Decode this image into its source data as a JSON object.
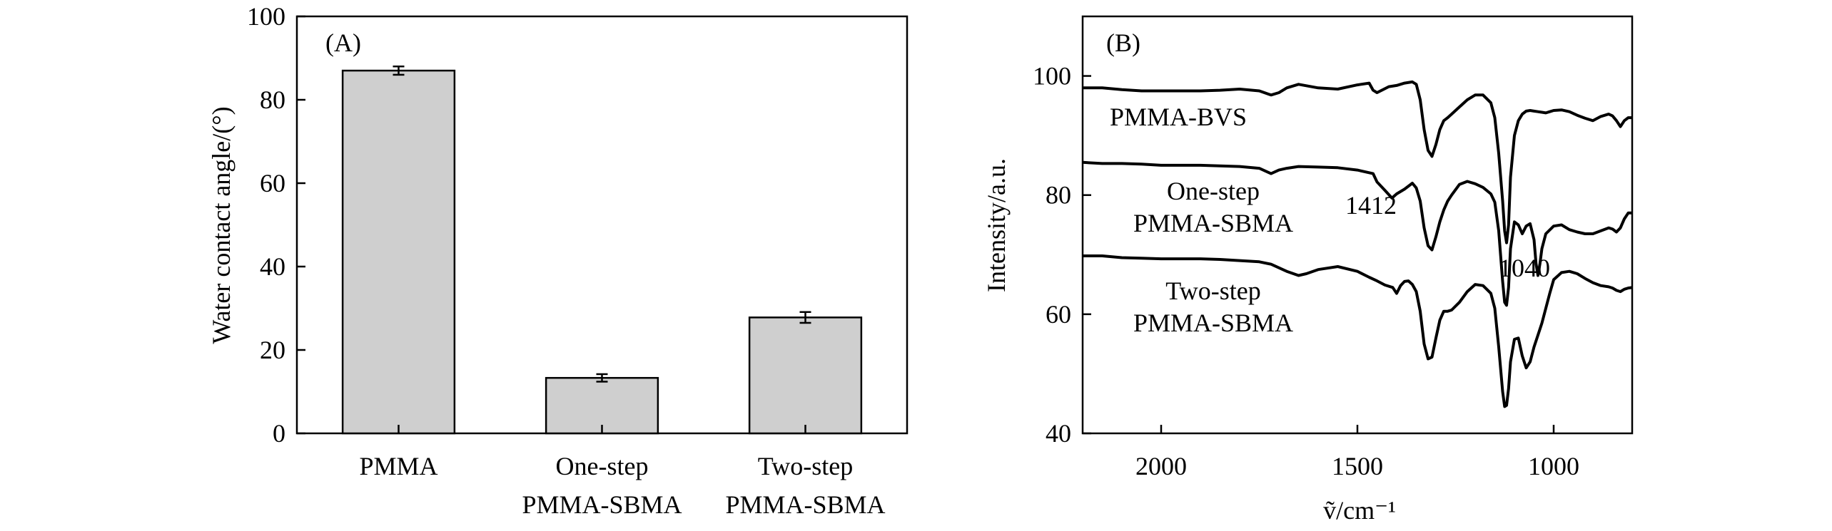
{
  "chart_data": [
    {
      "type": "bar",
      "panel_label": "(A)",
      "ylabel": "Water contact angle/(°)",
      "ylim": [
        0,
        100
      ],
      "yticks": [
        0,
        20,
        40,
        60,
        80,
        100
      ],
      "categories": [
        [
          "PMMA"
        ],
        [
          "One-step",
          "PMMA-SBMA"
        ],
        [
          "Two-step",
          "PMMA-SBMA"
        ]
      ],
      "values": [
        87,
        13.3,
        27.8
      ],
      "errors": [
        1.0,
        0.9,
        1.3
      ],
      "bar_color": "#cfcfcf"
    },
    {
      "type": "line",
      "panel_label": "(B)",
      "ylabel": "Intensity/a.u.",
      "xlabel": "ṽ/cm⁻¹",
      "xlim": [
        2200,
        800
      ],
      "xticks": [
        2000,
        1500,
        1000
      ],
      "ylim": [
        40,
        110
      ],
      "yticks": [
        40,
        60,
        80,
        100
      ],
      "series": [
        {
          "name": "PMMA-BVS",
          "label_lines": [
            "PMMA-BVS"
          ],
          "x": [
            2200,
            2150,
            2100,
            2050,
            2000,
            1950,
            1900,
            1850,
            1800,
            1750,
            1720,
            1700,
            1680,
            1650,
            1600,
            1550,
            1500,
            1470,
            1460,
            1450,
            1420,
            1400,
            1380,
            1360,
            1350,
            1340,
            1330,
            1320,
            1310,
            1300,
            1290,
            1280,
            1270,
            1260,
            1240,
            1220,
            1200,
            1180,
            1160,
            1150,
            1140,
            1130,
            1125,
            1120,
            1115,
            1110,
            1100,
            1090,
            1080,
            1070,
            1060,
            1050,
            1040,
            1030,
            1020,
            1010,
            1000,
            980,
            960,
            940,
            920,
            900,
            880,
            860,
            850,
            840,
            830,
            820,
            810,
            800
          ],
          "y": [
            98,
            98,
            97.7,
            97.5,
            97.5,
            97.5,
            97.5,
            97.6,
            97.8,
            97.5,
            96.8,
            97.2,
            98,
            98.6,
            98,
            97.8,
            98.5,
            98.8,
            97.6,
            97.2,
            98.2,
            98.4,
            98.8,
            99,
            98.6,
            96,
            91,
            87.5,
            86.5,
            88.5,
            91,
            92.5,
            93,
            93.6,
            94.8,
            96,
            96.8,
            96.8,
            95.5,
            93,
            87,
            79,
            74,
            72,
            75,
            83,
            90,
            92.5,
            93.6,
            94.1,
            94.2,
            94.1,
            94,
            93.9,
            93.8,
            94,
            94.2,
            94.3,
            94,
            93.4,
            92.9,
            92.5,
            93.2,
            93.6,
            93.3,
            92.5,
            91.5,
            92.5,
            93,
            93
          ]
        },
        {
          "name": "One-step PMMA-SBMA",
          "label_lines": [
            "One-step",
            "PMMA-SBMA"
          ],
          "x": [
            2200,
            2150,
            2100,
            2050,
            2000,
            1950,
            1900,
            1850,
            1800,
            1750,
            1720,
            1700,
            1680,
            1650,
            1600,
            1550,
            1500,
            1460,
            1450,
            1430,
            1412,
            1400,
            1380,
            1360,
            1350,
            1340,
            1330,
            1320,
            1310,
            1300,
            1290,
            1280,
            1270,
            1260,
            1240,
            1220,
            1200,
            1180,
            1160,
            1150,
            1140,
            1130,
            1125,
            1120,
            1115,
            1110,
            1100,
            1090,
            1080,
            1070,
            1060,
            1050,
            1045,
            1040,
            1035,
            1030,
            1020,
            1000,
            980,
            960,
            940,
            920,
            900,
            880,
            860,
            850,
            840,
            830,
            820,
            810,
            800
          ],
          "y": [
            85.5,
            85.3,
            85.3,
            85.2,
            85,
            85,
            85,
            84.9,
            84.8,
            84.5,
            83.6,
            84.2,
            84.5,
            84.8,
            84.7,
            84.6,
            84.2,
            83.6,
            82.2,
            80.8,
            79.5,
            80.2,
            81,
            82,
            81.2,
            79,
            74.5,
            71.5,
            70.8,
            73,
            75.5,
            77.5,
            79,
            80,
            81.8,
            82.3,
            81.9,
            81.3,
            80.2,
            78.8,
            74,
            65.5,
            62,
            61.5,
            64.5,
            71,
            75.5,
            75,
            73.5,
            74.8,
            75.2,
            72.5,
            68.5,
            66.5,
            68.5,
            71,
            73.5,
            74.8,
            75,
            74.2,
            73.8,
            73.5,
            73.5,
            74,
            74.5,
            74.3,
            73.8,
            74.5,
            76,
            77,
            77
          ]
        },
        {
          "name": "Two-step PMMA-SBMA",
          "label_lines": [
            "Two-step",
            "PMMA-SBMA"
          ],
          "x": [
            2200,
            2150,
            2100,
            2050,
            2000,
            1950,
            1900,
            1850,
            1800,
            1750,
            1720,
            1700,
            1680,
            1650,
            1630,
            1600,
            1550,
            1500,
            1470,
            1450,
            1430,
            1410,
            1400,
            1390,
            1380,
            1370,
            1360,
            1350,
            1340,
            1330,
            1320,
            1310,
            1300,
            1290,
            1280,
            1270,
            1260,
            1240,
            1220,
            1200,
            1180,
            1160,
            1150,
            1140,
            1130,
            1125,
            1120,
            1115,
            1110,
            1100,
            1090,
            1080,
            1070,
            1060,
            1050,
            1040,
            1030,
            1020,
            1010,
            1000,
            980,
            960,
            940,
            920,
            900,
            880,
            860,
            850,
            840,
            830,
            820,
            810,
            800
          ],
          "y": [
            69.8,
            69.8,
            69.5,
            69.4,
            69.3,
            69.3,
            69.3,
            69.2,
            69,
            68.8,
            68.4,
            67.8,
            67.2,
            66.5,
            66.8,
            67.5,
            68,
            67.2,
            66.2,
            65.6,
            64.9,
            64.5,
            63.5,
            64.8,
            65.5,
            65.6,
            65,
            63.8,
            60.5,
            55,
            52.5,
            52.8,
            56,
            59,
            60.5,
            60.5,
            60.7,
            62,
            63.8,
            65,
            64.8,
            63.5,
            61,
            54.5,
            47,
            44.5,
            44.7,
            47.5,
            52,
            55.8,
            56,
            53,
            51,
            52,
            54.5,
            56.5,
            58.5,
            61,
            63.5,
            65.8,
            67,
            67.2,
            66.8,
            66,
            65.3,
            64.8,
            64.6,
            64.4,
            64,
            63.8,
            64.2,
            64.4,
            64.5
          ]
        }
      ],
      "annotations": [
        "1412",
        "1040"
      ]
    }
  ]
}
